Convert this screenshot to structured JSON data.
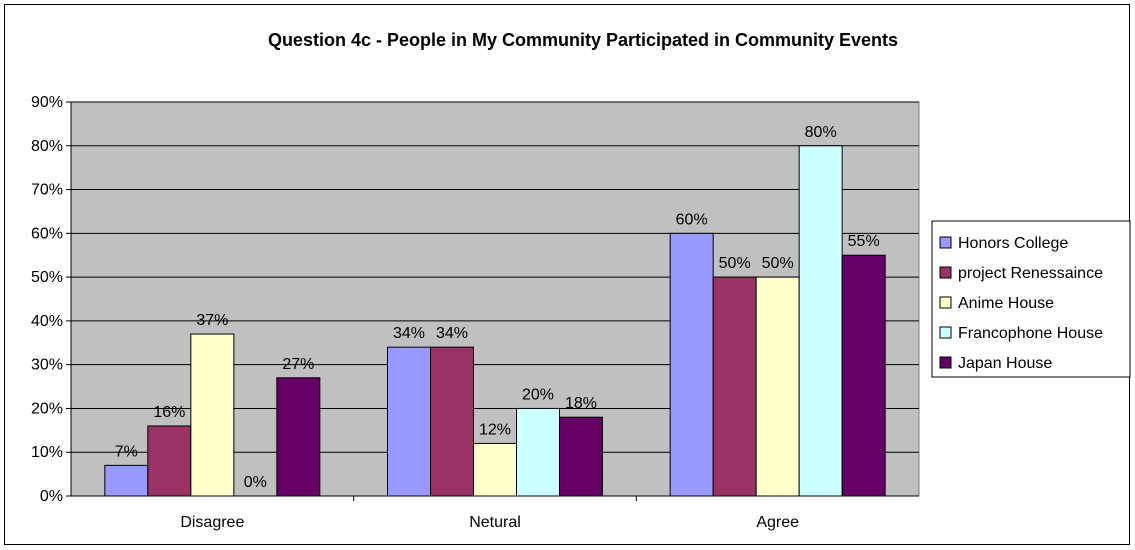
{
  "chart_data": {
    "type": "bar",
    "title": "Question 4c - People in My Community Participated in Community Events",
    "xlabel": "",
    "ylabel": "",
    "categories": [
      "Disagree",
      "Netural",
      "Agree"
    ],
    "ylim": [
      0,
      90
    ],
    "y_ticks": [
      "0%",
      "10%",
      "20%",
      "30%",
      "40%",
      "50%",
      "60%",
      "70%",
      "80%",
      "90%"
    ],
    "y_tick_values": [
      0,
      10,
      20,
      30,
      40,
      50,
      60,
      70,
      80,
      90
    ],
    "grid": true,
    "legend_position": "right",
    "plot_background": "#c0c0c0",
    "series": [
      {
        "name": "Honors College",
        "color": "#9999ff",
        "values": [
          7,
          34,
          60
        ],
        "labels": [
          "7%",
          "34%",
          "60%"
        ]
      },
      {
        "name": "project Renessaince",
        "color": "#993366",
        "values": [
          16,
          34,
          50
        ],
        "labels": [
          "16%",
          "34%",
          "50%"
        ]
      },
      {
        "name": "Anime House",
        "color": "#ffffcc",
        "values": [
          37,
          12,
          50
        ],
        "labels": [
          "37%",
          "12%",
          "50%"
        ]
      },
      {
        "name": "Francophone House",
        "color": "#ccffff",
        "values": [
          0,
          20,
          80
        ],
        "labels": [
          "0%",
          "20%",
          "80%"
        ]
      },
      {
        "name": "Japan House",
        "color": "#660066",
        "values": [
          27,
          18,
          55
        ],
        "labels": [
          "27%",
          "18%",
          "55%"
        ]
      }
    ]
  }
}
